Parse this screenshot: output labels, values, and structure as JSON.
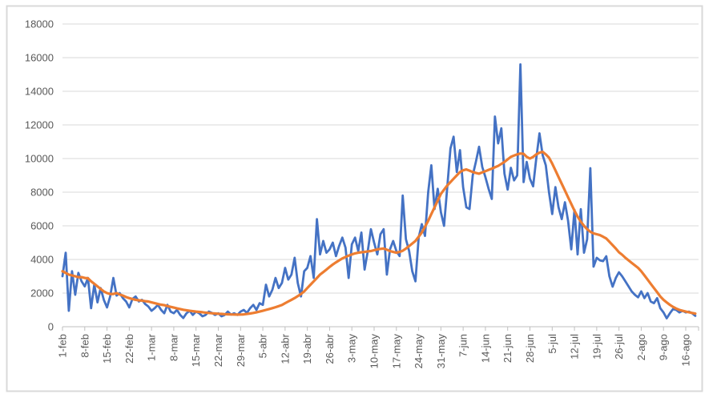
{
  "chart_data": {
    "type": "line",
    "title": "",
    "xlabel": "",
    "ylabel": "",
    "legend": "none",
    "grid": "horizontal",
    "ylim": [
      0,
      18000
    ],
    "y_ticks": [
      0,
      2000,
      4000,
      6000,
      8000,
      10000,
      12000,
      14000,
      16000,
      18000
    ],
    "x_tick_labels": [
      "1-feb",
      "8-feb",
      "15-feb",
      "22-feb",
      "1-mar",
      "8-mar",
      "15-mar",
      "22-mar",
      "29-mar",
      "5-abr",
      "12-abr",
      "19-abr",
      "26-abr",
      "3-may",
      "10-may",
      "17-may",
      "24-may",
      "31-may",
      "7-jun",
      "14-jun",
      "21-jun",
      "28-jun",
      "5-jul",
      "12-jul",
      "19-jul",
      "26-jul",
      "2-ago",
      "9-ago",
      "16-ago"
    ],
    "days_per_x_tick": 7,
    "x_start_label": "1-feb",
    "num_points": 200,
    "colors": {
      "series_blue": "#4472C4",
      "series_orange": "#ED7D31",
      "gridline": "#D9D9D9",
      "axis": "#BFBFBF",
      "tick_label": "#595959",
      "frame_border": "#D9D9D9"
    },
    "series": [
      {
        "name": "series_blue",
        "color": "#4472C4",
        "stroke_width": 2.8,
        "values": [
          3000,
          4400,
          950,
          3300,
          1900,
          3200,
          2700,
          2400,
          2900,
          1100,
          2500,
          1450,
          2300,
          1600,
          1150,
          1800,
          2900,
          1850,
          2000,
          1700,
          1500,
          1150,
          1650,
          1800,
          1500,
          1600,
          1350,
          1200,
          950,
          1100,
          1300,
          1000,
          800,
          1300,
          900,
          800,
          1000,
          700,
          520,
          800,
          950,
          700,
          900,
          800,
          620,
          700,
          900,
          820,
          700,
          800,
          620,
          700,
          900,
          720,
          800,
          700,
          900,
          1000,
          820,
          1100,
          1300,
          1000,
          1400,
          1300,
          2500,
          1800,
          2200,
          2900,
          2300,
          2600,
          3500,
          2800,
          3100,
          4100,
          2600,
          1800,
          3300,
          3500,
          4200,
          2900,
          6400,
          4300,
          5100,
          4400,
          4600,
          5000,
          4200,
          4800,
          5300,
          4700,
          2900,
          4900,
          5300,
          4500,
          5600,
          3400,
          4500,
          5800,
          5000,
          4300,
          5500,
          5800,
          3100,
          4600,
          5100,
          4500,
          4200,
          7800,
          5200,
          4500,
          3300,
          2700,
          5300,
          6100,
          5400,
          8000,
          9600,
          7000,
          8200,
          6800,
          6000,
          8300,
          10600,
          11300,
          9200,
          10500,
          8300,
          7100,
          7000,
          9000,
          9800,
          10700,
          9500,
          8900,
          8200,
          7600,
          12500,
          10900,
          11800,
          9100,
          8150,
          9450,
          8700,
          9000,
          15600,
          8600,
          9800,
          8800,
          8350,
          10000,
          11500,
          10200,
          9600,
          8000,
          6700,
          8300,
          7100,
          6400,
          7400,
          6300,
          4600,
          6950,
          4300,
          6990,
          4400,
          5200,
          9430,
          3570,
          4100,
          3950,
          3900,
          4190,
          3000,
          2380,
          2900,
          3240,
          3000,
          2700,
          2400,
          2100,
          1900,
          1750,
          2100,
          1700,
          2000,
          1500,
          1400,
          1700,
          1100,
          850,
          500,
          800,
          1050,
          1000,
          850,
          950,
          850,
          900,
          800,
          650
        ]
      },
      {
        "name": "series_orange",
        "color": "#ED7D31",
        "stroke_width": 3.2,
        "values": [
          3300,
          3200,
          3100,
          3050,
          3000,
          2950,
          2950,
          2900,
          2880,
          2700,
          2550,
          2400,
          2250,
          2100,
          2000,
          1950,
          1950,
          2000,
          1920,
          1850,
          1760,
          1700,
          1650,
          1600,
          1570,
          1550,
          1520,
          1500,
          1450,
          1400,
          1350,
          1310,
          1280,
          1230,
          1180,
          1140,
          1090,
          1050,
          1010,
          980,
          950,
          925,
          900,
          880,
          860,
          840,
          820,
          800,
          785,
          770,
          760,
          748,
          738,
          730,
          722,
          720,
          726,
          735,
          755,
          785,
          820,
          855,
          900,
          950,
          1000,
          1050,
          1105,
          1160,
          1225,
          1290,
          1400,
          1500,
          1600,
          1705,
          1820,
          1950,
          2100,
          2300,
          2500,
          2700,
          2900,
          3100,
          3250,
          3400,
          3550,
          3700,
          3830,
          3950,
          4060,
          4150,
          4230,
          4300,
          4360,
          4400,
          4430,
          4450,
          4480,
          4500,
          4550,
          4600,
          4630,
          4650,
          4580,
          4500,
          4450,
          4400,
          4450,
          4520,
          4650,
          4800,
          4950,
          5100,
          5350,
          5600,
          5950,
          6300,
          6700,
          7100,
          7500,
          7900,
          8150,
          8400,
          8600,
          8800,
          9000,
          9200,
          9300,
          9350,
          9280,
          9200,
          9150,
          9100,
          9180,
          9250,
          9330,
          9400,
          9480,
          9560,
          9680,
          9800,
          9950,
          10100,
          10180,
          10250,
          10300,
          10280,
          10100,
          10000,
          10100,
          10250,
          10350,
          10400,
          10250,
          10050,
          9700,
          9300,
          8900,
          8500,
          8100,
          7700,
          7300,
          6900,
          6550,
          6250,
          6000,
          5800,
          5650,
          5550,
          5500,
          5450,
          5350,
          5250,
          5050,
          4850,
          4650,
          4430,
          4280,
          4100,
          3950,
          3800,
          3650,
          3500,
          3300,
          3050,
          2800,
          2550,
          2300,
          2050,
          1800,
          1600,
          1450,
          1300,
          1180,
          1080,
          1000,
          950,
          900,
          860,
          820,
          780
        ]
      }
    ]
  }
}
